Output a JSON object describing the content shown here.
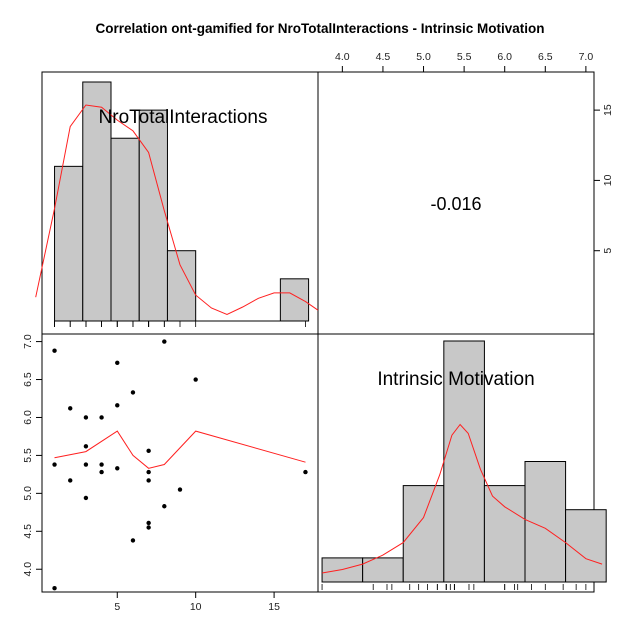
{
  "chart_data": {
    "type": "scatter",
    "title": "Correlation ont-gamified for NroTotalInteractions - Intrinsic Motivation",
    "variables": [
      "NroTotalInteractions",
      "Intrinsic Motivation"
    ],
    "correlation": "-0.016",
    "x_ticks": [
      "5",
      "10",
      "15"
    ],
    "y_ticks": [
      "4.0",
      "4.5",
      "5.0",
      "5.5",
      "6.0",
      "6.5",
      "7.0"
    ],
    "top_ticks": [
      "4.0",
      "4.5",
      "5.0",
      "5.5",
      "6.0",
      "6.5",
      "7.0"
    ],
    "right_ticks": [
      "5",
      "10",
      "15"
    ],
    "xlim": [
      0.2,
      17.8
    ],
    "ylim": [
      3.7,
      7.1
    ],
    "histogram_x": {
      "breaks": [
        1,
        2.8,
        4.6,
        6.4,
        8.2,
        10,
        11.8,
        13.6,
        15.4,
        17.2
      ],
      "counts": [
        11,
        17,
        13,
        15,
        5,
        0,
        0,
        0,
        3
      ]
    },
    "histogram_y": {
      "breaks": [
        3.75,
        4.25,
        4.75,
        5.25,
        5.75,
        6.25,
        6.75,
        7.25
      ],
      "counts": [
        1,
        1,
        4,
        10,
        4,
        5,
        3
      ]
    },
    "scatter_points": [
      [
        1,
        6.88
      ],
      [
        1,
        5.38
      ],
      [
        1,
        3.75
      ],
      [
        2,
        6.12
      ],
      [
        2,
        5.17
      ],
      [
        3,
        6.0
      ],
      [
        3,
        5.62
      ],
      [
        3,
        5.38
      ],
      [
        3,
        4.94
      ],
      [
        4,
        6.0
      ],
      [
        4,
        5.38
      ],
      [
        4,
        5.28
      ],
      [
        5,
        6.72
      ],
      [
        5,
        6.16
      ],
      [
        5,
        5.33
      ],
      [
        6,
        6.33
      ],
      [
        6,
        4.38
      ],
      [
        7,
        5.56
      ],
      [
        7,
        5.28
      ],
      [
        7,
        5.17
      ],
      [
        7,
        4.61
      ],
      [
        7,
        4.55
      ],
      [
        8,
        7.0
      ],
      [
        8,
        4.83
      ],
      [
        9,
        5.05
      ],
      [
        10,
        6.5
      ],
      [
        17,
        5.28
      ]
    ],
    "smooth_line": [
      [
        1,
        5.47
      ],
      [
        3,
        5.55
      ],
      [
        5,
        5.82
      ],
      [
        6,
        5.5
      ],
      [
        7,
        5.33
      ],
      [
        8,
        5.38
      ],
      [
        10,
        5.82
      ],
      [
        17,
        5.41
      ]
    ],
    "density_x": [
      [
        -0.2,
        0.11
      ],
      [
        1,
        0.52
      ],
      [
        2,
        0.9
      ],
      [
        3,
        1.0
      ],
      [
        4,
        0.99
      ],
      [
        5,
        0.93
      ],
      [
        6,
        0.88
      ],
      [
        7,
        0.78
      ],
      [
        8,
        0.51
      ],
      [
        9,
        0.26
      ],
      [
        10,
        0.12
      ],
      [
        11,
        0.06
      ],
      [
        12,
        0.03
      ],
      [
        13,
        0.065
      ],
      [
        14,
        0.105
      ],
      [
        15,
        0.13
      ],
      [
        16,
        0.13
      ],
      [
        17,
        0.09
      ],
      [
        17.8,
        0.05
      ]
    ],
    "density_y": [
      [
        3.75,
        0.05
      ],
      [
        4.0,
        0.07
      ],
      [
        4.25,
        0.1
      ],
      [
        4.5,
        0.15
      ],
      [
        4.75,
        0.22
      ],
      [
        5.0,
        0.36
      ],
      [
        5.2,
        0.6
      ],
      [
        5.35,
        0.82
      ],
      [
        5.45,
        0.88
      ],
      [
        5.55,
        0.83
      ],
      [
        5.7,
        0.63
      ],
      [
        5.85,
        0.48
      ],
      [
        6.0,
        0.42
      ],
      [
        6.25,
        0.35
      ],
      [
        6.5,
        0.3
      ],
      [
        6.75,
        0.22
      ],
      [
        7.0,
        0.13
      ],
      [
        7.2,
        0.1
      ]
    ],
    "grid": false,
    "legend": "none",
    "colors": {
      "bar_fill": "#c8c8c8",
      "curve": "#ff2020",
      "points": "#000000"
    }
  }
}
